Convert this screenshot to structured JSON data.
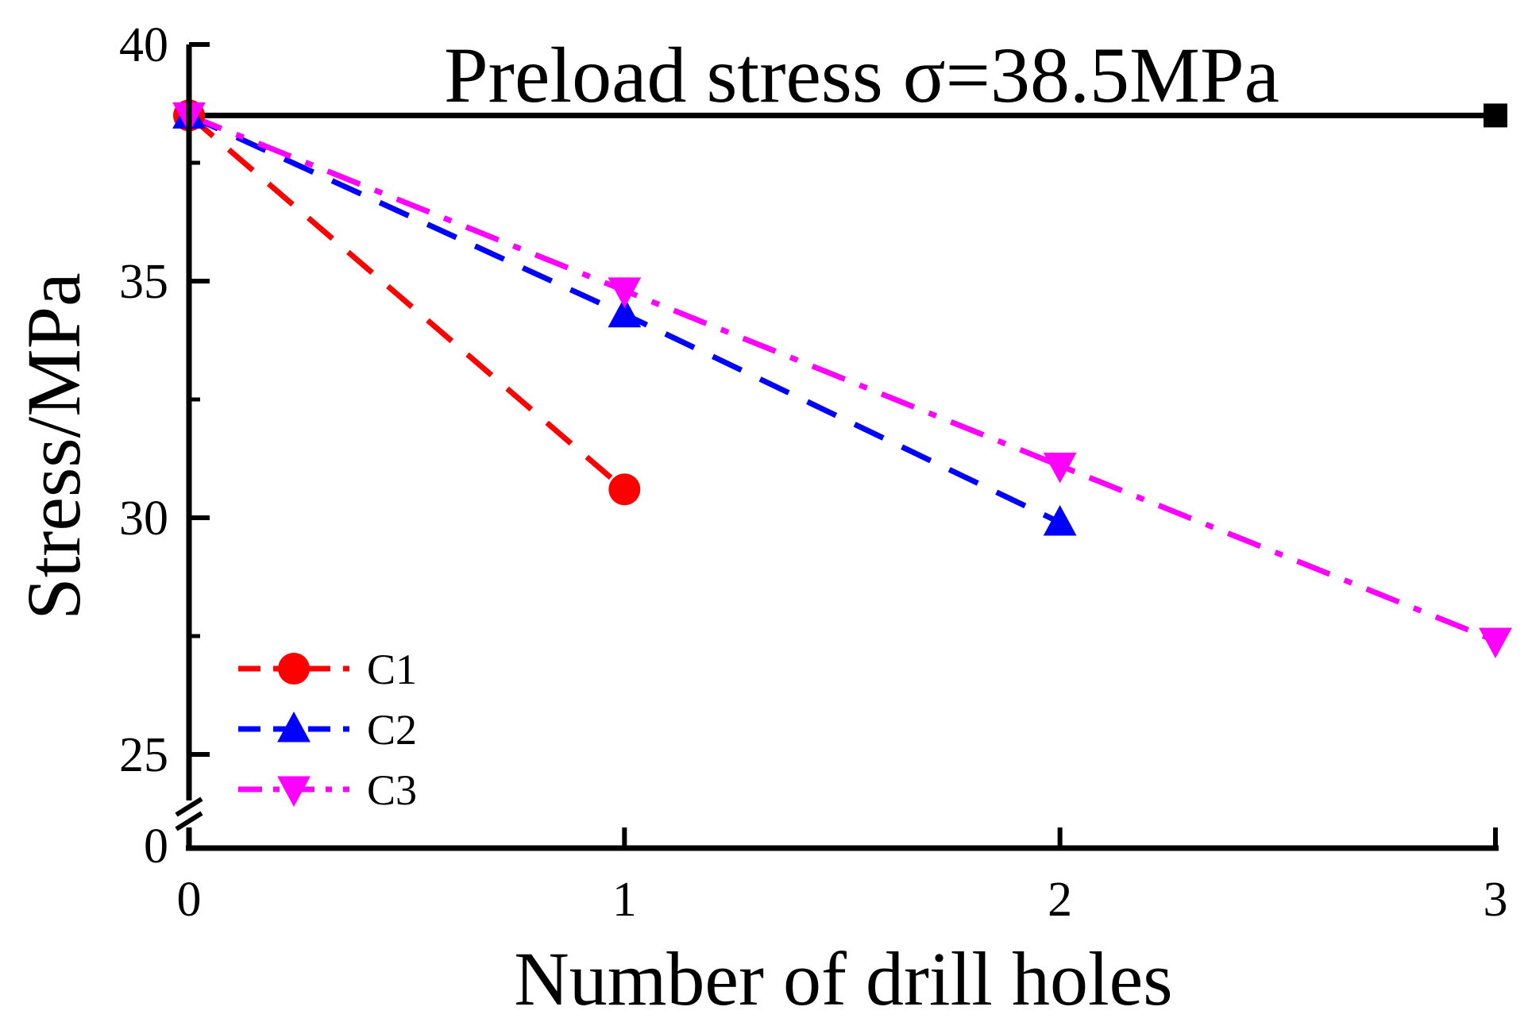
{
  "chart_data": {
    "type": "line",
    "title": "",
    "annotation": "Preload stress σ=38.5MPa",
    "xlabel": "Number of drill holes",
    "ylabel": "Stress/MPa",
    "x_ticks": [
      "0",
      "1",
      "2",
      "3"
    ],
    "y_ticks": [
      "25",
      "30",
      "35",
      "40"
    ],
    "y_break_label": "0",
    "xlim": [
      0,
      3
    ],
    "ylim": [
      23.2,
      40
    ],
    "y_axis_break": true,
    "legend_position": "bottom-left",
    "preload_line": {
      "name": "Preload",
      "value": 38.5,
      "color": "#000000"
    },
    "series": [
      {
        "name": "C1",
        "x": [
          0,
          1
        ],
        "values": [
          38.5,
          30.6
        ],
        "color": "#ff0000",
        "marker": "circle",
        "dash": "dashed"
      },
      {
        "name": "C2",
        "x": [
          0,
          1,
          2
        ],
        "values": [
          38.5,
          34.3,
          29.9
        ],
        "color": "#0000ff",
        "marker": "triangle-up",
        "dash": "dashed"
      },
      {
        "name": "C3",
        "x": [
          0,
          1,
          2,
          3
        ],
        "values": [
          38.5,
          34.8,
          31.1,
          27.4
        ],
        "color": "#ff00ff",
        "marker": "triangle-down",
        "dash": "dash-dot"
      }
    ]
  }
}
